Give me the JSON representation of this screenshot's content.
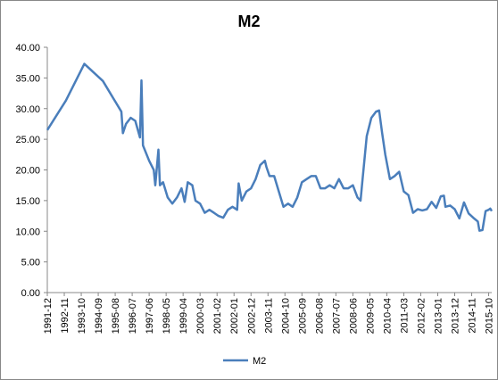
{
  "chart_data": {
    "type": "line",
    "title": "M2",
    "x": [
      "1991-12",
      "1992-12",
      "1993-12",
      "1994-12",
      "1995-12",
      "1996-01",
      "1996-03",
      "1996-06",
      "1996-09",
      "1996-12",
      "1997-01",
      "1997-02",
      "1997-06",
      "1997-09",
      "1997-10",
      "1997-12",
      "1998-01",
      "1998-03",
      "1998-06",
      "1998-09",
      "1998-12",
      "1999-03",
      "1999-05",
      "1999-07",
      "1999-10",
      "1999-12",
      "2000-03",
      "2000-06",
      "2000-09",
      "2000-12",
      "2001-03",
      "2001-06",
      "2001-09",
      "2001-12",
      "2002-03",
      "2002-04",
      "2002-06",
      "2002-09",
      "2002-12",
      "2003-03",
      "2003-06",
      "2003-09",
      "2003-10",
      "2003-12",
      "2004-03",
      "2004-06",
      "2004-09",
      "2004-12",
      "2005-03",
      "2005-06",
      "2005-09",
      "2005-12",
      "2006-03",
      "2006-06",
      "2006-09",
      "2006-12",
      "2007-03",
      "2007-06",
      "2007-09",
      "2007-12",
      "2008-03",
      "2008-06",
      "2008-09",
      "2008-11",
      "2008-12",
      "2009-03",
      "2009-06",
      "2009-09",
      "2009-11",
      "2010-01",
      "2010-03",
      "2010-06",
      "2010-09",
      "2010-12",
      "2011-03",
      "2011-06",
      "2011-09",
      "2011-12",
      "2012-03",
      "2012-06",
      "2012-09",
      "2012-12",
      "2013-03",
      "2013-05",
      "2013-06",
      "2013-09",
      "2013-12",
      "2014-03",
      "2014-06",
      "2014-09",
      "2014-12",
      "2015-03",
      "2015-04",
      "2015-06",
      "2015-08",
      "2015-10",
      "2015-11",
      "2015-12"
    ],
    "series": [
      {
        "name": "M2",
        "color": "#4a7ebb",
        "values": [
          26.5,
          31.3,
          37.3,
          34.5,
          29.5,
          26,
          27.5,
          28.5,
          28,
          25.3,
          34.6,
          24,
          21.5,
          20,
          17.5,
          23.3,
          17.5,
          18,
          15.5,
          14.5,
          15.5,
          17,
          14.8,
          18,
          17.5,
          15,
          14.5,
          13,
          13.5,
          13,
          12.5,
          12.2,
          13.5,
          14,
          13.5,
          17.8,
          15,
          16.5,
          17,
          18.5,
          20.8,
          21.5,
          20.5,
          19,
          19,
          16.5,
          14,
          14.5,
          14,
          15.5,
          18,
          18.5,
          19,
          19,
          17,
          17,
          17.5,
          17,
          18.5,
          17,
          17,
          17.5,
          15.5,
          15,
          17.8,
          25.5,
          28.5,
          29.5,
          29.7,
          26,
          22.5,
          18.5,
          19,
          19.7,
          16.5,
          15.9,
          13,
          13.6,
          13.4,
          13.6,
          14.8,
          13.8,
          15.7,
          15.8,
          14,
          14.2,
          13.6,
          12.1,
          14.7,
          12.9,
          12.2,
          11.6,
          10.1,
          10.2,
          13.3,
          13.5,
          13.7,
          13.3
        ]
      }
    ],
    "xlim": [
      "1991-12",
      "2015-12"
    ],
    "xticks": [
      "1991-12",
      "1992-11",
      "1993-10",
      "1994-09",
      "1995-08",
      "1996-07",
      "1997-06",
      "1998-05",
      "1999-04",
      "2000-03",
      "2001-02",
      "2002-01",
      "2002-12",
      "2003-11",
      "2004-10",
      "2005-09",
      "2006-08",
      "2007-07",
      "2008-06",
      "2009-05",
      "2010-04",
      "2011-03",
      "2012-02",
      "2013-01",
      "2013-12",
      "2014-11",
      "2015-10"
    ],
    "ylim": [
      0,
      40
    ],
    "yticks": [
      {
        "value": 0,
        "label": "0.00"
      },
      {
        "value": 5,
        "label": "5.00"
      },
      {
        "value": 10,
        "label": "10.00"
      },
      {
        "value": 15,
        "label": "15.00"
      },
      {
        "value": 20,
        "label": "20.00"
      },
      {
        "value": 25,
        "label": "25.00"
      },
      {
        "value": 30,
        "label": "30.00"
      },
      {
        "value": 35,
        "label": "35.00"
      },
      {
        "value": 40,
        "label": "40.00"
      }
    ],
    "legend": "bottom"
  }
}
